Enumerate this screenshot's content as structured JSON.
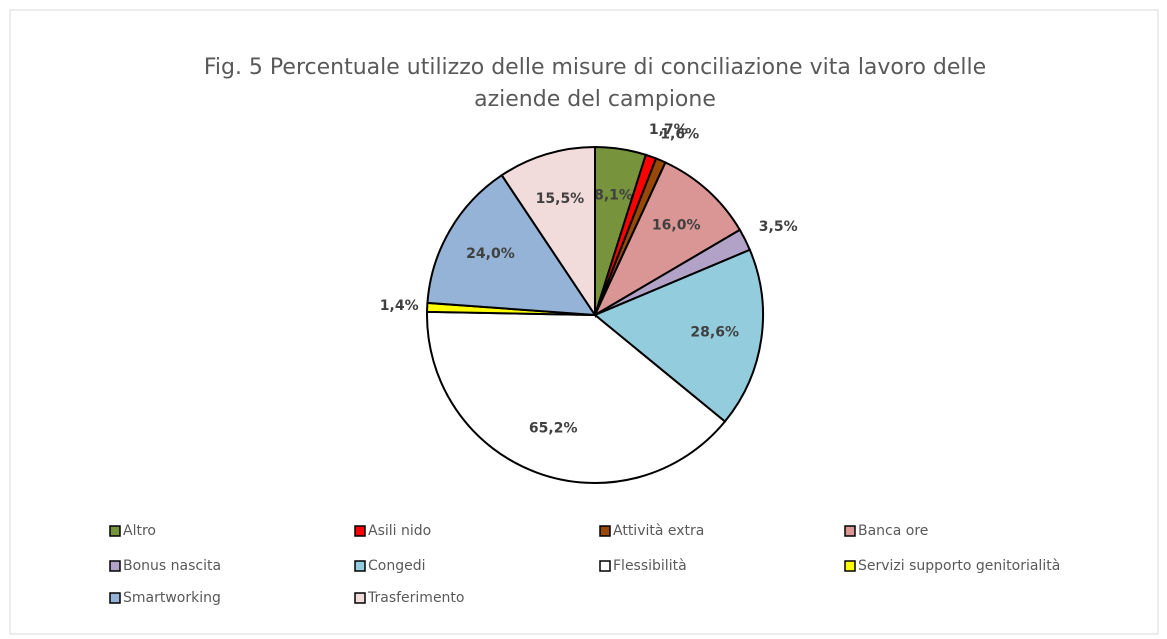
{
  "chart_data": {
    "type": "pie",
    "title": [
      "Fig. 5 Percentuale utilizzo delle misure di conciliazione vita lavoro delle",
      "aziende del campione"
    ],
    "categories": [
      "Altro",
      "Asili nido",
      "Attività extra",
      "Banca ore",
      "Bonus nascita",
      "Congedi",
      "Flessibilità",
      "Servizi supporto genitorialità",
      "Smartworking",
      "Trasferimento"
    ],
    "values": [
      8.1,
      1.7,
      1.6,
      16.0,
      3.5,
      28.6,
      65.2,
      1.4,
      24.0,
      15.5
    ],
    "value_labels": [
      "8,1%",
      "1,7%",
      "1,6%",
      "16,0%",
      "3,5%",
      "28,6%",
      "65,2%",
      "1,4%",
      "24,0%",
      "15,5%"
    ],
    "colors": [
      "#77933c",
      "#ff0000",
      "#984807",
      "#d99694",
      "#b3a2c7",
      "#93cddd",
      "#ffffff",
      "#ffff00",
      "#95b3d7",
      "#f2dcdb"
    ],
    "legend": "bottom"
  }
}
